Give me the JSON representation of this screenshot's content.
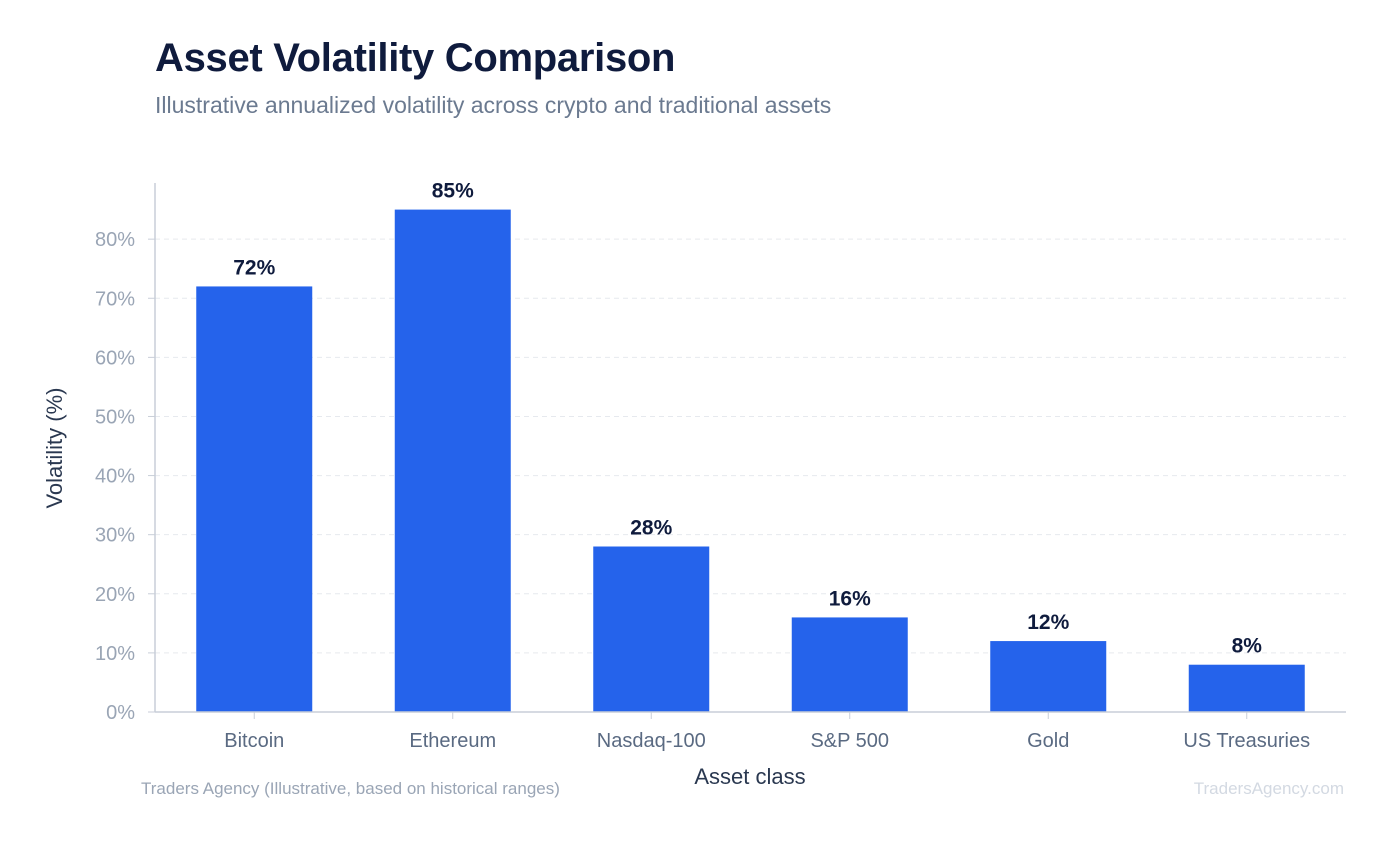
{
  "colors": {
    "bar": "#2563eb",
    "title": "#0f1b3d",
    "subtitle": "#6b7a90",
    "grid": "#e6e9ee",
    "axis": "#c8ced8"
  },
  "footer": {
    "source": "Traders Agency (Illustrative, based on historical ranges)",
    "watermark": "TradersAgency.com"
  },
  "chart_data": {
    "type": "bar",
    "title": "Asset Volatility Comparison",
    "subtitle": "Illustrative annualized volatility across crypto and traditional assets",
    "xlabel": "Asset class",
    "ylabel": "Volatility (%)",
    "categories": [
      "Bitcoin",
      "Ethereum",
      "Nasdaq-100",
      "S&P 500",
      "Gold",
      "US Treasuries"
    ],
    "values": [
      72,
      85,
      28,
      16,
      12,
      8
    ],
    "value_labels": [
      "72%",
      "85%",
      "28%",
      "16%",
      "12%",
      "8%"
    ],
    "ylim": [
      0,
      89.5
    ],
    "yticks": [
      0,
      10,
      20,
      30,
      40,
      50,
      60,
      70,
      80
    ],
    "ytick_labels": [
      "0%",
      "10%",
      "20%",
      "30%",
      "40%",
      "50%",
      "60%",
      "70%",
      "80%"
    ],
    "grid": true,
    "legend": "none"
  }
}
